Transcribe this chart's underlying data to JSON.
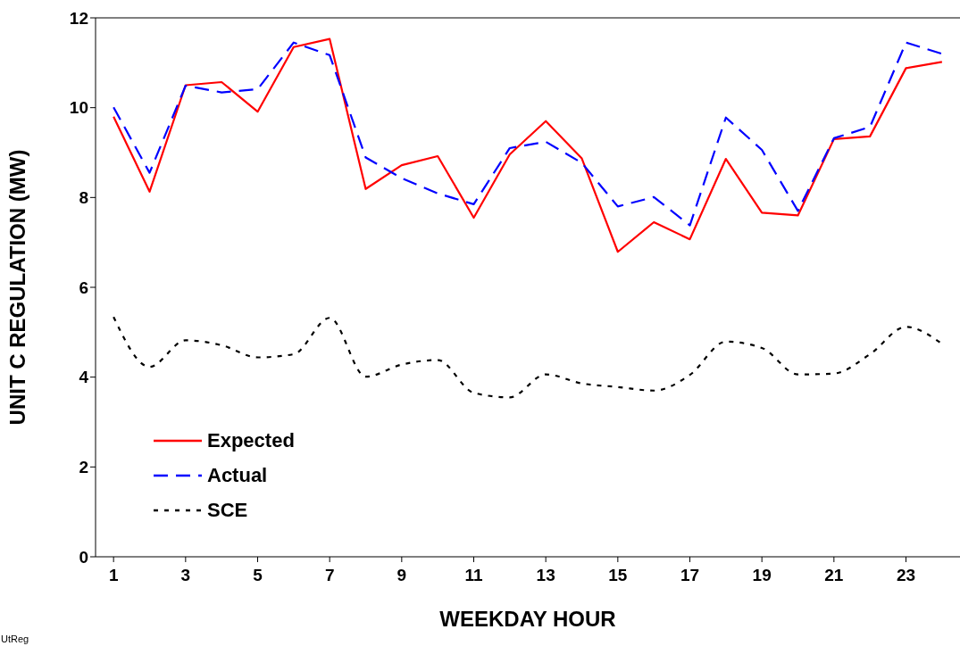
{
  "chart_data": {
    "type": "line",
    "xlabel": "WEEKDAY HOUR",
    "ylabel": "UNIT C REGULATION (MW)",
    "x": [
      1,
      2,
      3,
      4,
      5,
      6,
      7,
      8,
      9,
      10,
      11,
      12,
      13,
      14,
      15,
      16,
      17,
      18,
      19,
      20,
      21,
      22,
      23,
      24
    ],
    "xlim": [
      0.5,
      24.5
    ],
    "xticks": [
      1,
      3,
      5,
      7,
      9,
      11,
      13,
      15,
      17,
      19,
      21,
      23
    ],
    "series": [
      {
        "name": "Expected",
        "color": "#ff0000",
        "line_style": "solid",
        "values": [
          9.8,
          8.13,
          10.5,
          10.57,
          9.91,
          11.35,
          11.53,
          8.19,
          8.72,
          8.92,
          7.55,
          8.96,
          9.7,
          8.87,
          6.79,
          7.45,
          7.07,
          8.86,
          7.66,
          7.6,
          9.3,
          9.36,
          10.88,
          11.02
        ]
      },
      {
        "name": "Actual",
        "color": "#0000ff",
        "line_style": "dashed",
        "values": [
          10.01,
          8.55,
          10.49,
          10.34,
          10.41,
          11.45,
          11.17,
          8.89,
          8.43,
          8.09,
          7.85,
          9.1,
          9.24,
          8.77,
          7.8,
          8.01,
          7.38,
          9.78,
          9.06,
          7.7,
          9.32,
          9.57,
          11.45,
          11.2
        ]
      },
      {
        "name": "SCE",
        "color": "#000000",
        "line_style": "dotted",
        "values": [
          5.34,
          4.23,
          4.82,
          4.71,
          4.44,
          4.51,
          5.32,
          4.01,
          4.28,
          4.38,
          3.65,
          3.55,
          4.06,
          3.86,
          3.78,
          3.7,
          4.05,
          4.79,
          4.65,
          4.06,
          4.08,
          4.51,
          5.12,
          4.74
        ]
      }
    ],
    "ylim": [
      0,
      12
    ],
    "yticks": [
      0,
      2,
      4,
      6,
      8,
      10,
      12
    ],
    "grid": false,
    "legend": "bottom left",
    "marker": "none",
    "annotations": [
      "UtReg"
    ]
  }
}
